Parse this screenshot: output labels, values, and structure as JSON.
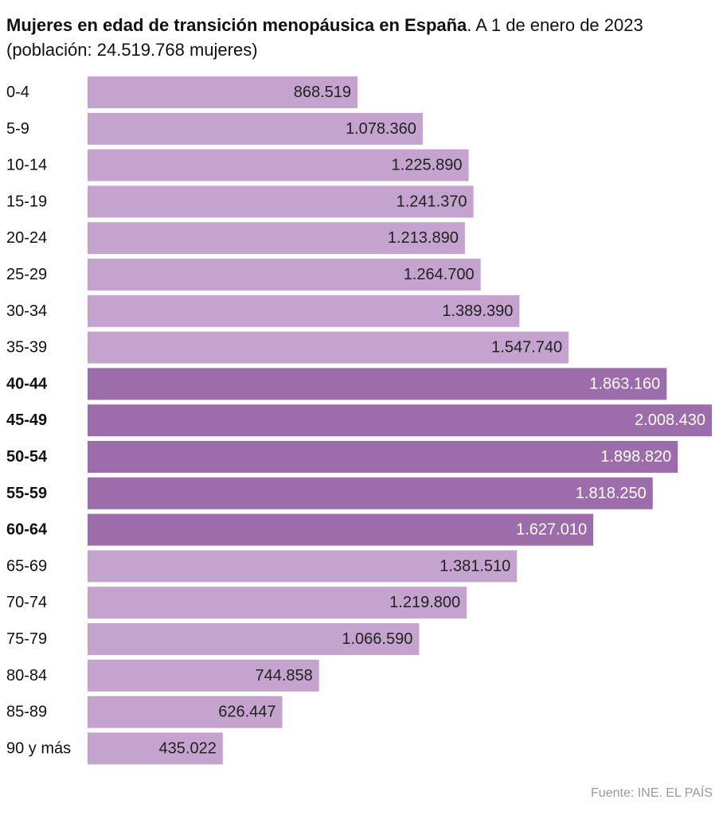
{
  "header": {
    "title_bold": "Mujeres en edad de transición menopáusica en España",
    "title_regular": ". A 1 de enero de 2023",
    "subtitle": "(población: 24.519.768 mujeres)"
  },
  "source": "Fuente: INE. EL PAÍS",
  "colors": {
    "bar_default": "#c4a3cf",
    "bar_highlight": "#9d6caa",
    "label_default": "#222222",
    "label_highlight": "#ffffff"
  },
  "chart_data": {
    "type": "bar",
    "orientation": "horizontal",
    "title": "Mujeres en edad de transición menopáusica en España. A 1 de enero de 2023",
    "subtitle": "(población: 24.519.768 mujeres)",
    "xlabel": "",
    "ylabel": "",
    "xlim": [
      0,
      2008430
    ],
    "grid": false,
    "categories": [
      "0-4",
      "5-9",
      "10-14",
      "15-19",
      "20-24",
      "25-29",
      "30-34",
      "35-39",
      "40-44",
      "45-49",
      "50-54",
      "55-59",
      "60-64",
      "65-69",
      "70-74",
      "75-79",
      "80-84",
      "85-89",
      "90 y más"
    ],
    "values": [
      868519,
      1078360,
      1225890,
      1241370,
      1213890,
      1264700,
      1389390,
      1547740,
      1863160,
      2008430,
      1898820,
      1818250,
      1627010,
      1381510,
      1219800,
      1066590,
      744858,
      626447,
      435022
    ],
    "value_labels": [
      "868.519",
      "1.078.360",
      "1.225.890",
      "1.241.370",
      "1.213.890",
      "1.264.700",
      "1.389.390",
      "1.547.740",
      "1.863.160",
      "2.008.430",
      "1.898.820",
      "1.818.250",
      "1.627.010",
      "1.381.510",
      "1.219.800",
      "1.066.590",
      "744.858",
      "626.447",
      "435.022"
    ],
    "highlighted": [
      false,
      false,
      false,
      false,
      false,
      false,
      false,
      false,
      true,
      true,
      true,
      true,
      true,
      false,
      false,
      false,
      false,
      false,
      false
    ]
  }
}
